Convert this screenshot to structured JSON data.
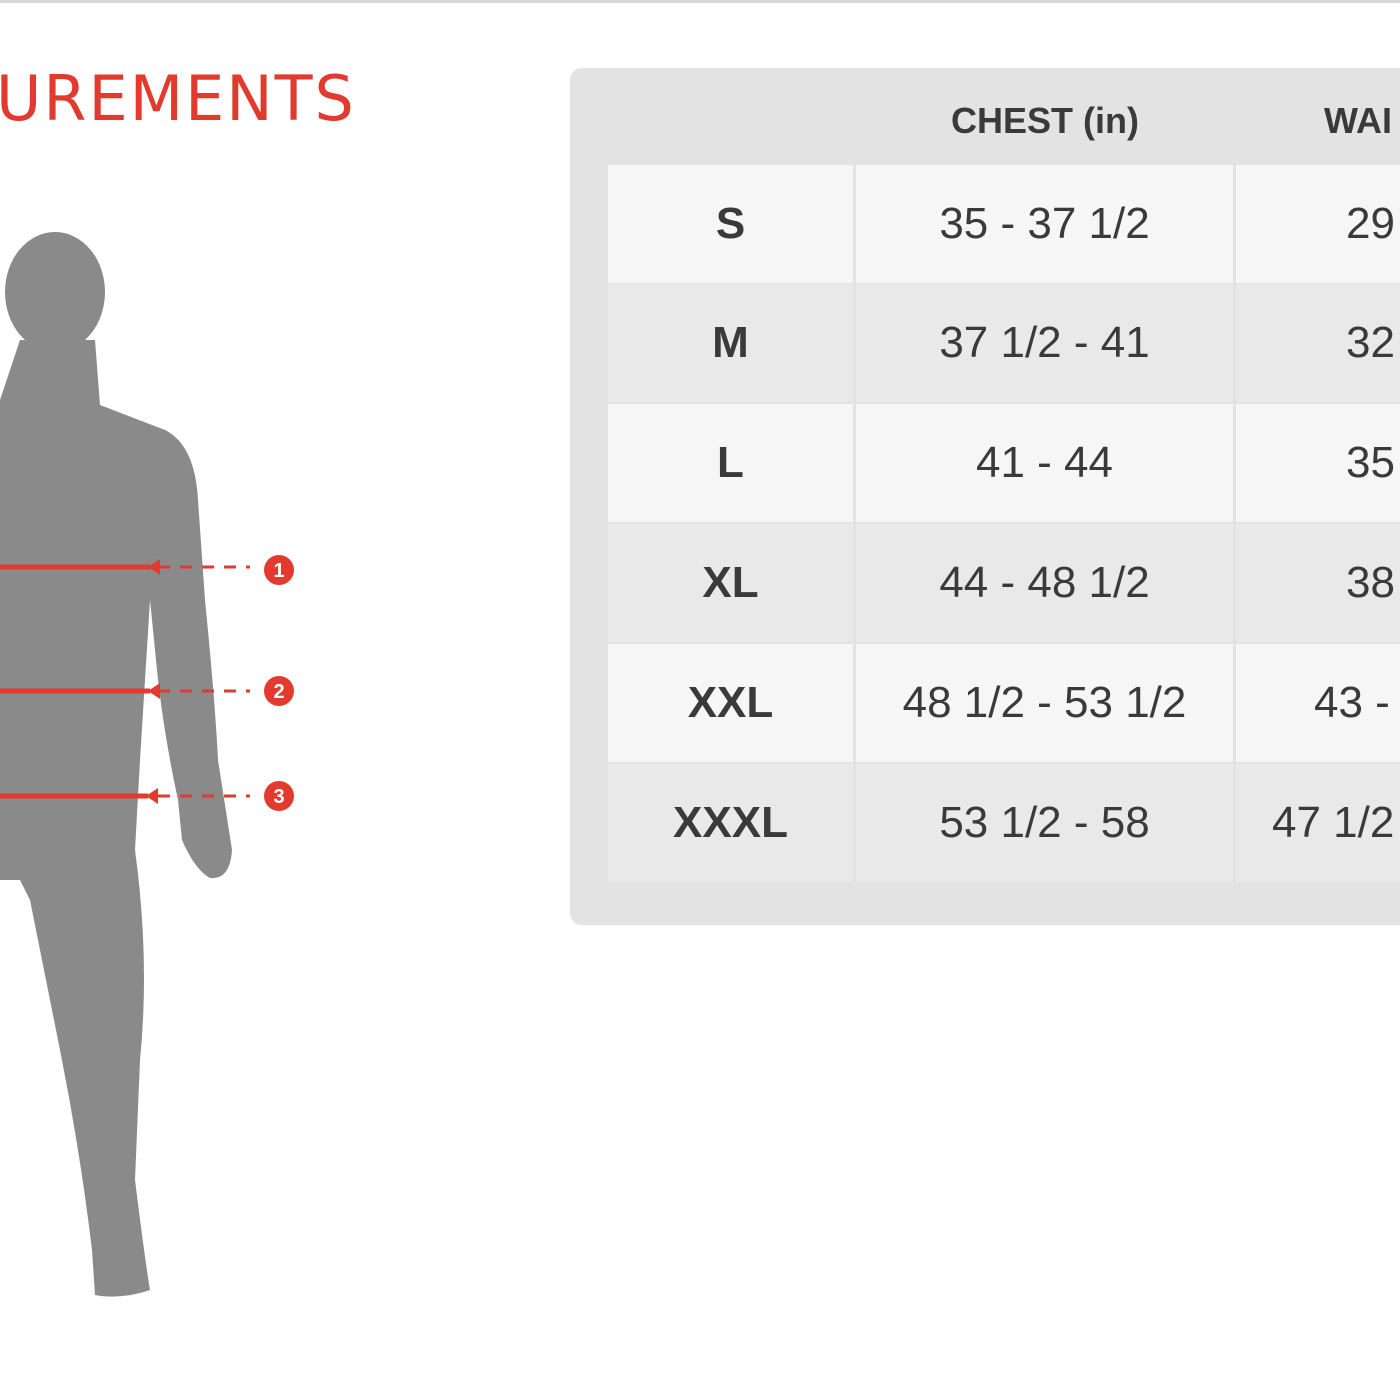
{
  "title": "UREMENTS",
  "colors": {
    "accent": "#e23a2e",
    "silhouette": "#8a8a8a",
    "panel": "#e3e3e3"
  },
  "markers": [
    "1",
    "2",
    "3"
  ],
  "table": {
    "headers": [
      "CHEST (in)",
      "WAI"
    ],
    "rows": [
      {
        "size": "S",
        "chest": "35 - 37 1/2",
        "waist": "29"
      },
      {
        "size": "M",
        "chest": "37 1/2 - 41",
        "waist": "32"
      },
      {
        "size": "L",
        "chest": "41 - 44",
        "waist": "35"
      },
      {
        "size": "XL",
        "chest": "44 - 48 1/2",
        "waist": "38"
      },
      {
        "size": "XXL",
        "chest": "48 1/2 - 53 1/2",
        "waist": "43 -"
      },
      {
        "size": "XXXL",
        "chest": "53 1/2 - 58",
        "waist": "47 1/2"
      }
    ]
  }
}
